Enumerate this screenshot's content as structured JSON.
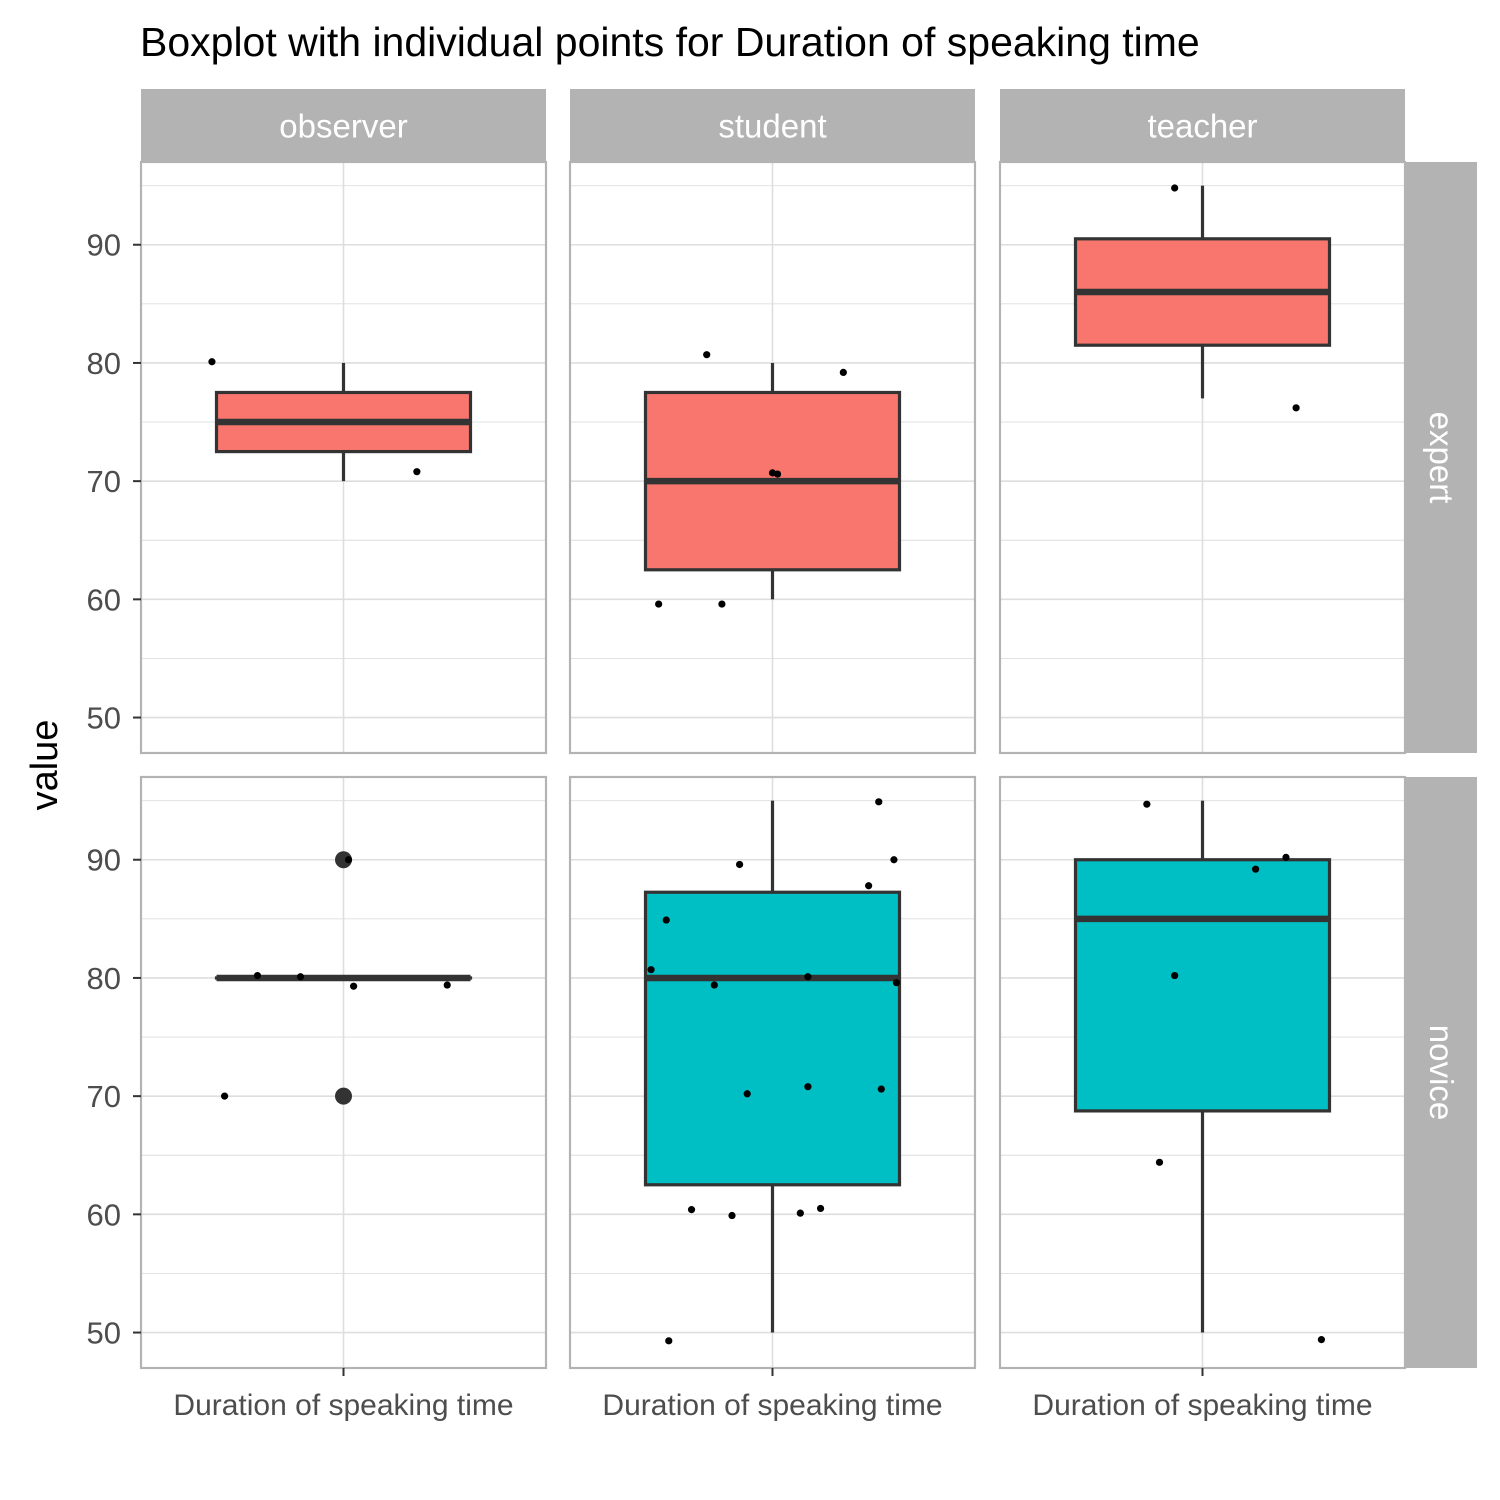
{
  "chart_data": {
    "type": "boxplot",
    "title": "Boxplot with individual points for Duration of speaking time",
    "ylabel": "value",
    "ylim": [
      47,
      97
    ],
    "yticks": [
      50,
      60,
      70,
      80,
      90
    ],
    "grid": true,
    "columns": [
      "observer",
      "student",
      "teacher"
    ],
    "rows": [
      "expert",
      "novice"
    ],
    "x_category": "Duration of speaking time",
    "colors": {
      "expert": "#F8766D",
      "novice": "#00BFC4",
      "outline": "#333333",
      "strip": "#b3b3b3",
      "grid": "#dedede",
      "panel_border": "#b3b3b3"
    },
    "panels": [
      {
        "col": "observer",
        "row": "expert",
        "box": {
          "min": 70,
          "q1": 72.5,
          "median": 75,
          "q3": 77.5,
          "max": 80
        },
        "outliers": [],
        "points": [
          [
            -0.52,
            80.1
          ],
          [
            0.29,
            70.8
          ]
        ]
      },
      {
        "col": "student",
        "row": "expert",
        "box": {
          "min": 60,
          "q1": 62.5,
          "median": 70,
          "q3": 77.5,
          "max": 80
        },
        "outliers": [],
        "points": [
          [
            -0.26,
            80.7
          ],
          [
            0.28,
            79.2
          ],
          [
            0.0,
            70.7
          ],
          [
            0.02,
            70.6
          ],
          [
            -0.45,
            59.6
          ],
          [
            -0.2,
            59.6
          ]
        ]
      },
      {
        "col": "teacher",
        "row": "expert",
        "box": {
          "min": 77,
          "q1": 81.5,
          "median": 86,
          "q3": 90.5,
          "max": 95
        },
        "outliers": [],
        "points": [
          [
            -0.11,
            94.8
          ],
          [
            0.37,
            76.2
          ]
        ]
      },
      {
        "col": "observer",
        "row": "novice",
        "box": {
          "min": 80,
          "q1": 80,
          "median": 80,
          "q3": 80,
          "max": 80
        },
        "outliers": [
          90,
          70
        ],
        "points": [
          [
            0.02,
            90.0
          ],
          [
            -0.34,
            80.2
          ],
          [
            -0.17,
            80.1
          ],
          [
            0.04,
            79.3
          ],
          [
            0.41,
            79.4
          ],
          [
            -0.47,
            70.0
          ]
        ]
      },
      {
        "col": "student",
        "row": "novice",
        "box": {
          "min": 50,
          "q1": 62.5,
          "median": 80,
          "q3": 87.25,
          "max": 95
        },
        "outliers": [],
        "points": [
          [
            0.42,
            94.9
          ],
          [
            -0.13,
            89.6
          ],
          [
            0.48,
            90.0
          ],
          [
            0.38,
            87.8
          ],
          [
            -0.42,
            84.9
          ],
          [
            -0.48,
            80.7
          ],
          [
            0.14,
            80.1
          ],
          [
            -0.23,
            79.4
          ],
          [
            0.49,
            79.6
          ],
          [
            -0.1,
            70.2
          ],
          [
            0.14,
            70.8
          ],
          [
            0.43,
            70.6
          ],
          [
            -0.32,
            60.4
          ],
          [
            -0.16,
            59.9
          ],
          [
            0.11,
            60.1
          ],
          [
            0.19,
            60.5
          ],
          [
            -0.41,
            49.3
          ]
        ]
      },
      {
        "col": "teacher",
        "row": "novice",
        "box": {
          "min": 50,
          "q1": 68.75,
          "median": 85,
          "q3": 90,
          "max": 95
        },
        "outliers": [],
        "points": [
          [
            -0.22,
            94.7
          ],
          [
            0.21,
            89.2
          ],
          [
            0.33,
            90.2
          ],
          [
            -0.11,
            80.2
          ],
          [
            -0.17,
            64.4
          ],
          [
            0.47,
            49.4
          ]
        ]
      }
    ]
  }
}
